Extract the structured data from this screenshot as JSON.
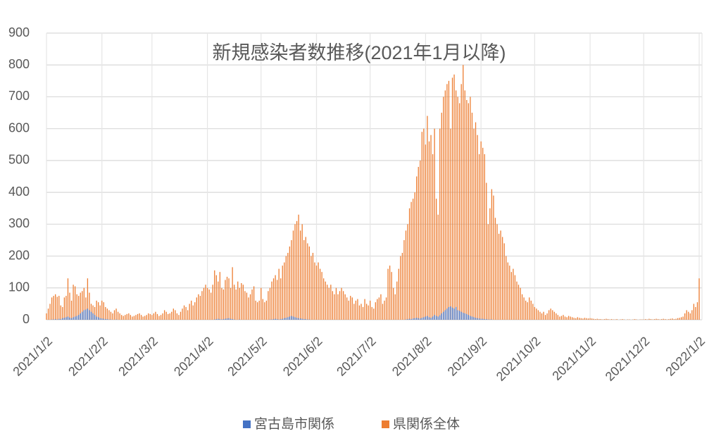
{
  "chart_data": {
    "type": "bar",
    "title": "新規感染者数推移(2021年1月以降)",
    "categories": [
      "2021/1/2",
      null,
      null,
      null,
      null,
      null,
      null,
      null,
      null,
      null,
      null,
      null,
      null,
      null,
      null,
      null,
      null,
      null,
      null,
      null,
      null,
      null,
      null,
      null,
      null,
      null,
      null,
      null,
      null,
      null,
      null,
      "2021/2/2",
      null,
      null,
      null,
      null,
      null,
      null,
      null,
      null,
      null,
      null,
      null,
      null,
      null,
      null,
      null,
      null,
      null,
      null,
      null,
      null,
      null,
      null,
      null,
      null,
      null,
      null,
      null,
      "2021/3/2",
      null,
      null,
      null,
      null,
      null,
      null,
      null,
      null,
      null,
      null,
      null,
      null,
      null,
      null,
      null,
      null,
      null,
      null,
      null,
      null,
      null,
      null,
      null,
      null,
      null,
      null,
      null,
      null,
      null,
      null,
      "2021/4/2",
      null,
      null,
      null,
      null,
      null,
      null,
      null,
      null,
      null,
      null,
      null,
      null,
      null,
      null,
      null,
      null,
      null,
      null,
      null,
      null,
      null,
      null,
      null,
      null,
      null,
      null,
      null,
      null,
      null,
      "2021/5/2",
      null,
      null,
      null,
      null,
      null,
      null,
      null,
      null,
      null,
      null,
      null,
      null,
      null,
      null,
      null,
      null,
      null,
      null,
      null,
      null,
      null,
      null,
      null,
      null,
      null,
      null,
      null,
      null,
      null,
      null,
      "2021/6/2",
      null,
      null,
      null,
      null,
      null,
      null,
      null,
      null,
      null,
      null,
      null,
      null,
      null,
      null,
      null,
      null,
      null,
      null,
      null,
      null,
      null,
      null,
      null,
      null,
      null,
      null,
      null,
      null,
      null,
      "2021/7/2",
      null,
      null,
      null,
      null,
      null,
      null,
      null,
      null,
      null,
      null,
      null,
      null,
      null,
      null,
      null,
      null,
      null,
      null,
      null,
      null,
      null,
      null,
      null,
      null,
      null,
      null,
      null,
      null,
      null,
      null,
      "2021/8/2",
      null,
      null,
      null,
      null,
      null,
      null,
      null,
      null,
      null,
      null,
      null,
      null,
      null,
      null,
      null,
      null,
      null,
      null,
      null,
      null,
      null,
      null,
      null,
      null,
      null,
      null,
      null,
      null,
      null,
      null,
      "2021/9/2",
      null,
      null,
      null,
      null,
      null,
      null,
      null,
      null,
      null,
      null,
      null,
      null,
      null,
      null,
      null,
      null,
      null,
      null,
      null,
      null,
      null,
      null,
      null,
      null,
      null,
      null,
      null,
      null,
      null,
      "2021/10/2",
      null,
      null,
      null,
      null,
      null,
      null,
      null,
      null,
      null,
      null,
      null,
      null,
      null,
      null,
      null,
      null,
      null,
      null,
      null,
      null,
      null,
      null,
      null,
      null,
      null,
      null,
      null,
      null,
      null,
      null,
      "2021/11/2",
      null,
      null,
      null,
      null,
      null,
      null,
      null,
      null,
      null,
      null,
      null,
      null,
      null,
      null,
      null,
      null,
      null,
      null,
      null,
      null,
      null,
      null,
      null,
      null,
      null,
      null,
      null,
      null,
      null,
      "2021/12/2",
      null,
      null,
      null,
      null,
      null,
      null,
      null,
      null,
      null,
      null,
      null,
      null,
      null,
      null,
      null,
      null,
      null,
      null,
      null,
      null,
      null,
      null,
      null,
      null,
      null,
      null,
      null,
      null,
      null,
      null,
      "2022/1/2"
    ],
    "series": [
      {
        "name": "宮古島市関係",
        "color": "#4472c4",
        "values": [
          0,
          0,
          0,
          1,
          1,
          2,
          1,
          3,
          2,
          5,
          6,
          8,
          10,
          7,
          5,
          8,
          10,
          12,
          15,
          20,
          25,
          30,
          32,
          35,
          30,
          25,
          20,
          15,
          10,
          8,
          5,
          4,
          3,
          2,
          2,
          1,
          1,
          0,
          0,
          1,
          0,
          0,
          0,
          0,
          0,
          0,
          0,
          0,
          0,
          0,
          0,
          0,
          0,
          0,
          0,
          0,
          0,
          0,
          0,
          0,
          0,
          0,
          0,
          0,
          0,
          0,
          0,
          0,
          0,
          0,
          0,
          0,
          0,
          0,
          0,
          0,
          0,
          0,
          0,
          0,
          0,
          0,
          0,
          0,
          0,
          0,
          0,
          0,
          0,
          0,
          0,
          0,
          0,
          0,
          1,
          2,
          3,
          2,
          1,
          2,
          3,
          4,
          5,
          3,
          2,
          1,
          0,
          0,
          1,
          0,
          0,
          0,
          0,
          0,
          0,
          0,
          0,
          0,
          0,
          0,
          0,
          0,
          0,
          0,
          0,
          1,
          1,
          2,
          3,
          2,
          1,
          2,
          3,
          5,
          6,
          8,
          10,
          12,
          10,
          8,
          6,
          5,
          4,
          3,
          2,
          2,
          1,
          1,
          0,
          0,
          0,
          0,
          0,
          0,
          0,
          0,
          0,
          0,
          0,
          0,
          0,
          0,
          0,
          0,
          0,
          0,
          0,
          0,
          0,
          0,
          0,
          0,
          0,
          0,
          0,
          0,
          0,
          0,
          0,
          0,
          0,
          0,
          0,
          0,
          0,
          0,
          0,
          0,
          0,
          0,
          0,
          0,
          0,
          0,
          0,
          0,
          0,
          0,
          0,
          0,
          0,
          1,
          2,
          3,
          2,
          4,
          5,
          6,
          5,
          4,
          6,
          8,
          10,
          12,
          8,
          6,
          10,
          15,
          12,
          10,
          14,
          20,
          25,
          30,
          35,
          40,
          42,
          38,
          35,
          40,
          30,
          28,
          25,
          22,
          20,
          18,
          15,
          12,
          10,
          8,
          6,
          5,
          4,
          3,
          3,
          2,
          2,
          1,
          1,
          1,
          0,
          0,
          0,
          0,
          0,
          0,
          0,
          0,
          0,
          0,
          0,
          0,
          0,
          0,
          0,
          0,
          0,
          0,
          0,
          0,
          0,
          0,
          0,
          0,
          0,
          0,
          0,
          0,
          0,
          0,
          0,
          0,
          0,
          0,
          0,
          0,
          0,
          0,
          0,
          0,
          0,
          0,
          0,
          0,
          0,
          0,
          0,
          0,
          0,
          0,
          0,
          0,
          0,
          0,
          0,
          0,
          0,
          0,
          0,
          0,
          0,
          0,
          0,
          0,
          0,
          0,
          0,
          0,
          0,
          0,
          0,
          0,
          0,
          0,
          0,
          0,
          0,
          0,
          0,
          0,
          0,
          0,
          0,
          0,
          0,
          0,
          0,
          0,
          0,
          0,
          0,
          0,
          0,
          0,
          0,
          0,
          0,
          0,
          0,
          0,
          0,
          0,
          0,
          0,
          0,
          0,
          0,
          0,
          0,
          0,
          0,
          0,
          0,
          0,
          0,
          0
        ]
      },
      {
        "name": "県関係全体",
        "color": "#ed7d31",
        "values": [
          20,
          35,
          50,
          70,
          75,
          80,
          72,
          75,
          45,
          40,
          70,
          75,
          130,
          85,
          60,
          110,
          105,
          80,
          75,
          85,
          90,
          100,
          70,
          130,
          85,
          50,
          45,
          40,
          60,
          55,
          45,
          60,
          55,
          40,
          35,
          30,
          25,
          20,
          30,
          35,
          25,
          20,
          15,
          12,
          15,
          18,
          20,
          15,
          10,
          12,
          15,
          18,
          20,
          15,
          10,
          12,
          15,
          20,
          18,
          15,
          20,
          25,
          18,
          12,
          15,
          20,
          30,
          25,
          18,
          20,
          25,
          35,
          30,
          20,
          15,
          25,
          35,
          45,
          40,
          30,
          50,
          60,
          45,
          55,
          70,
          80,
          75,
          90,
          100,
          110,
          100,
          95,
          85,
          110,
          155,
          140,
          120,
          150,
          100,
          95,
          125,
          135,
          130,
          100,
          165,
          110,
          95,
          120,
          100,
          115,
          110,
          90,
          85,
          70,
          80,
          95,
          105,
          60,
          55,
          60,
          100,
          65,
          55,
          60,
          90,
          100,
          120,
          130,
          140,
          125,
          160,
          130,
          170,
          180,
          200,
          210,
          230,
          250,
          280,
          300,
          310,
          330,
          280,
          300,
          250,
          260,
          240,
          230,
          200,
          210,
          180,
          170,
          180,
          160,
          150,
          130,
          120,
          110,
          100,
          110,
          90,
          80,
          100,
          80,
          90,
          100,
          90,
          80,
          70,
          60,
          75,
          70,
          50,
          60,
          65,
          45,
          50,
          40,
          65,
          50,
          45,
          60,
          40,
          35,
          55,
          65,
          70,
          80,
          50,
          60,
          70,
          160,
          170,
          150,
          100,
          80,
          120,
          160,
          200,
          210,
          250,
          280,
          300,
          350,
          370,
          380,
          400,
          450,
          480,
          500,
          590,
          600,
          550,
          640,
          560,
          580,
          520,
          600,
          380,
          330,
          600,
          650,
          700,
          720,
          740,
          750,
          600,
          760,
          770,
          720,
          700,
          680,
          740,
          800,
          720,
          690,
          680,
          700,
          650,
          600,
          620,
          580,
          520,
          560,
          540,
          520,
          430,
          300,
          350,
          410,
          390,
          320,
          300,
          270,
          280,
          260,
          240,
          200,
          180,
          170,
          150,
          160,
          140,
          120,
          110,
          100,
          80,
          70,
          60,
          55,
          70,
          60,
          50,
          40,
          35,
          30,
          25,
          20,
          25,
          15,
          20,
          30,
          35,
          30,
          25,
          20,
          15,
          10,
          12,
          15,
          10,
          8,
          12,
          10,
          8,
          6,
          5,
          8,
          6,
          5,
          4,
          6,
          5,
          4,
          5,
          4,
          3,
          2,
          3,
          2,
          2,
          1,
          2,
          3,
          2,
          1,
          2,
          1,
          1,
          2,
          0,
          1,
          2,
          1,
          0,
          1,
          1,
          0,
          1,
          2,
          1,
          0,
          1,
          1,
          1,
          2,
          1,
          3,
          2,
          1,
          2,
          3,
          2,
          1,
          2,
          3,
          2,
          1,
          2,
          3,
          4,
          2,
          3,
          5,
          6,
          8,
          10,
          20,
          30,
          25,
          20,
          30,
          50,
          40,
          55,
          130
        ]
      }
    ],
    "ylim": [
      0,
      900
    ],
    "yticks": [
      0,
      100,
      200,
      300,
      400,
      500,
      600,
      700,
      800,
      900
    ],
    "grid": true,
    "legend": "bottom"
  }
}
